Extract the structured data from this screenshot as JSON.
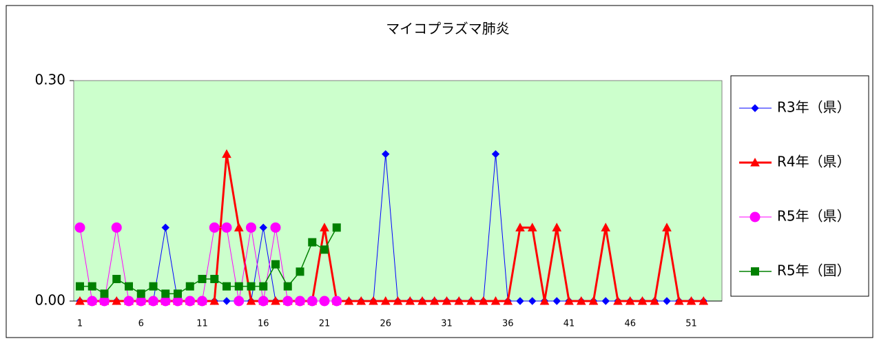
{
  "chart_data": {
    "type": "line",
    "title": "マイコプラズマ肺炎",
    "categories": [
      "1",
      null,
      null,
      null,
      null,
      "6",
      null,
      null,
      null,
      null,
      "11",
      null,
      null,
      null,
      null,
      "16",
      null,
      null,
      null,
      null,
      "21",
      null,
      null,
      null,
      null,
      "26",
      null,
      null,
      null,
      null,
      "31",
      null,
      null,
      null,
      null,
      "36",
      null,
      null,
      null,
      null,
      "41",
      null,
      null,
      null,
      null,
      "46",
      null,
      null,
      null,
      null,
      "51",
      null
    ],
    "ylim": [
      0,
      0.3
    ],
    "yticks": [
      {
        "value": 0,
        "label": "0.00"
      },
      {
        "value": 0.3,
        "label": "0.30"
      }
    ],
    "legend": "right",
    "series": [
      {
        "name": "R3年（県）",
        "color": "#0000ff",
        "marker": "diamond",
        "values": [
          0,
          0,
          0,
          0,
          0,
          0,
          0,
          0.1,
          0,
          0,
          0,
          0,
          0,
          0,
          0,
          0.1,
          0,
          0,
          0,
          0,
          0,
          0,
          0,
          0,
          0,
          0.2,
          0,
          0,
          0,
          0,
          0,
          0,
          0,
          0,
          0.2,
          0,
          0,
          0,
          0,
          0,
          0,
          0,
          0,
          0,
          0,
          0,
          0,
          0,
          0,
          0,
          0,
          0
        ]
      },
      {
        "name": "R4年（県）",
        "color": "#ff0000",
        "marker": "triangle",
        "values": [
          0,
          0,
          0,
          0,
          0,
          0,
          0,
          0,
          0,
          0,
          0,
          0,
          0.2,
          0.1,
          0,
          0,
          0,
          0,
          0,
          0,
          0.1,
          0,
          0,
          0,
          0,
          0,
          0,
          0,
          0,
          0,
          0,
          0,
          0,
          0,
          0,
          0,
          0.1,
          0.1,
          0,
          0.1,
          0,
          0,
          0,
          0.1,
          0,
          0,
          0,
          0,
          0.1,
          0,
          0,
          0
        ]
      },
      {
        "name": "R5年（県）",
        "color": "#ff00ff",
        "marker": "circle",
        "values": [
          0.1,
          0,
          0,
          0.1,
          0,
          0,
          0,
          0,
          0,
          0,
          0,
          0.1,
          0.1,
          0,
          0.1,
          0,
          0.1,
          0,
          0,
          0,
          0,
          0,
          null,
          null,
          null,
          null,
          null,
          null,
          null,
          null,
          null,
          null,
          null,
          null,
          null,
          null,
          null,
          null,
          null,
          null,
          null,
          null,
          null,
          null,
          null,
          null,
          null,
          null,
          null,
          null,
          null,
          null
        ]
      },
      {
        "name": "R5年（国）",
        "color": "#008000",
        "marker": "square",
        "values": [
          0.02,
          0.02,
          0.01,
          0.03,
          0.02,
          0.01,
          0.02,
          0.01,
          0.01,
          0.02,
          0.03,
          0.03,
          0.02,
          0.02,
          0.02,
          0.02,
          0.05,
          0.02,
          0.04,
          0.08,
          0.07,
          0.1,
          null,
          null,
          null,
          null,
          null,
          null,
          null,
          null,
          null,
          null,
          null,
          null,
          null,
          null,
          null,
          null,
          null,
          null,
          null,
          null,
          null,
          null,
          null,
          null,
          null,
          null,
          null,
          null,
          null,
          null
        ]
      }
    ]
  }
}
